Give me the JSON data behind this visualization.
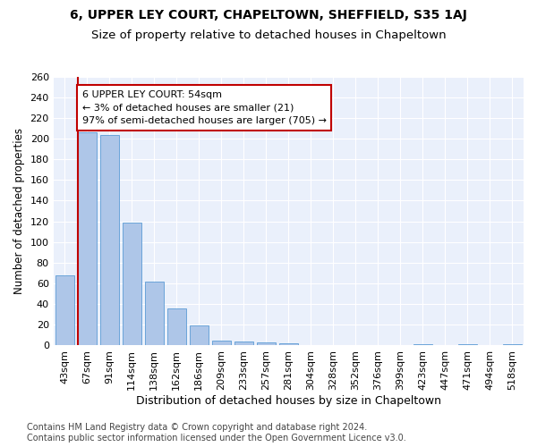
{
  "title": "6, UPPER LEY COURT, CHAPELTOWN, SHEFFIELD, S35 1AJ",
  "subtitle": "Size of property relative to detached houses in Chapeltown",
  "xlabel": "Distribution of detached houses by size in Chapeltown",
  "ylabel": "Number of detached properties",
  "categories": [
    "43sqm",
    "67sqm",
    "91sqm",
    "114sqm",
    "138sqm",
    "162sqm",
    "186sqm",
    "209sqm",
    "233sqm",
    "257sqm",
    "281sqm",
    "304sqm",
    "328sqm",
    "352sqm",
    "376sqm",
    "399sqm",
    "423sqm",
    "447sqm",
    "471sqm",
    "494sqm",
    "518sqm"
  ],
  "values": [
    68,
    206,
    203,
    119,
    62,
    36,
    19,
    5,
    4,
    3,
    2,
    0,
    0,
    0,
    0,
    0,
    1,
    0,
    1,
    0,
    1
  ],
  "bar_color": "#aec6e8",
  "bar_edge_color": "#5b9bd5",
  "highlight_color": "#c00000",
  "annotation_line1": "6 UPPER LEY COURT: 54sqm",
  "annotation_line2": "← 3% of detached houses are smaller (21)",
  "annotation_line3": "97% of semi-detached houses are larger (705) →",
  "annotation_box_color": "#ffffff",
  "annotation_box_edge": "#c00000",
  "footer": "Contains HM Land Registry data © Crown copyright and database right 2024.\nContains public sector information licensed under the Open Government Licence v3.0.",
  "bg_color": "#ffffff",
  "plot_bg_color": "#eaf0fb",
  "grid_color": "#ffffff",
  "ylim": [
    0,
    260
  ],
  "yticks": [
    0,
    20,
    40,
    60,
    80,
    100,
    120,
    140,
    160,
    180,
    200,
    220,
    240,
    260
  ],
  "title_fontsize": 10,
  "subtitle_fontsize": 9.5,
  "xlabel_fontsize": 9,
  "ylabel_fontsize": 8.5,
  "tick_fontsize": 8,
  "footer_fontsize": 7,
  "annotation_fontsize": 8
}
